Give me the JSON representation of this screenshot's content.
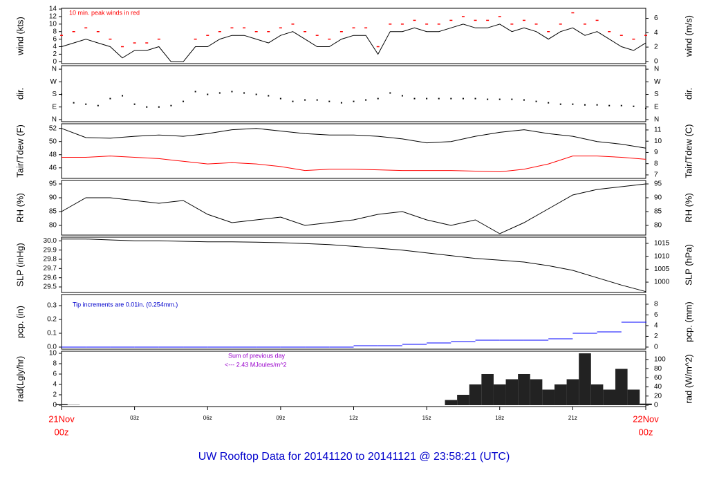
{
  "title": "UW Rooftop Data for 20141120  to  20141121 @ 23:58:21  (UTC)",
  "xaxis": {
    "xlim": [
      0,
      24
    ],
    "date_color": "#ff0000",
    "xticks": [
      {
        "value": 0,
        "label": "00z",
        "date": "21Nov"
      },
      {
        "value": 3,
        "label": "03z"
      },
      {
        "value": 6,
        "label": "06z"
      },
      {
        "value": 9,
        "label": "09z"
      },
      {
        "value": 12,
        "label": "12z"
      },
      {
        "value": 15,
        "label": "15z"
      },
      {
        "value": 18,
        "label": "18z"
      },
      {
        "value": 21,
        "label": "21z"
      },
      {
        "value": 24,
        "label": "00z",
        "date": "22Nov"
      }
    ]
  },
  "chart_data": [
    {
      "type": "line",
      "ylabel": "wind (kts)",
      "y2label": "wind (m/s)",
      "ylim": [
        -0.5,
        14.2
      ],
      "yticks": [
        0,
        2,
        4,
        6,
        8,
        10,
        12,
        14
      ],
      "y2lim": [
        -0.3,
        7.4
      ],
      "y2ticks": [
        0,
        2,
        4,
        6
      ],
      "annotations": [
        {
          "text": "10 min. peak winds in red",
          "color": "#ff0000"
        }
      ],
      "x": [
        0,
        0.5,
        1,
        1.5,
        2,
        2.5,
        3,
        3.5,
        4,
        4.5,
        5,
        5.5,
        6,
        6.5,
        7,
        7.5,
        8,
        8.5,
        9,
        9.5,
        10,
        10.5,
        11,
        11.5,
        12,
        12.5,
        13,
        13.5,
        14,
        14.5,
        15,
        15.5,
        16,
        16.5,
        17,
        17.5,
        18,
        18.5,
        19,
        19.5,
        20,
        20.5,
        21,
        21.5,
        22,
        22.5,
        23,
        23.5,
        24
      ],
      "series": [
        {
          "style": "line",
          "color": "#000000",
          "values": [
            4,
            5,
            6,
            5,
            4,
            1,
            3,
            3,
            4,
            0,
            0,
            4,
            4,
            6,
            7,
            7,
            6,
            5,
            7,
            8,
            6,
            4,
            4,
            6,
            7,
            7,
            2,
            8,
            8,
            9,
            8,
            8,
            9,
            10,
            9,
            9,
            10,
            8,
            9,
            8,
            6,
            8,
            9,
            7,
            8,
            6,
            4,
            3,
            5
          ]
        },
        {
          "style": "dash",
          "color": "#ff0000",
          "values": [
            7,
            8,
            9,
            8,
            6,
            4,
            5,
            5,
            6,
            null,
            null,
            6,
            7,
            8,
            9,
            9,
            8,
            8,
            9,
            10,
            8,
            7,
            6,
            8,
            9,
            9,
            4,
            10,
            10,
            11,
            10,
            10,
            11,
            12,
            11,
            11,
            12,
            10,
            11,
            10,
            8,
            10,
            13,
            10,
            11,
            8,
            7,
            6,
            7
          ]
        }
      ]
    },
    {
      "type": "line",
      "ylabel": "dir.",
      "y2label": "dir.",
      "ylim": [
        -15,
        385
      ],
      "yticks": [
        {
          "value": 0,
          "label": "N"
        },
        {
          "value": 90,
          "label": "E"
        },
        {
          "value": 180,
          "label": "S"
        },
        {
          "value": 270,
          "label": "W"
        },
        {
          "value": 360,
          "label": "N"
        }
      ],
      "x": [
        0,
        0.5,
        1,
        1.5,
        2,
        2.5,
        3,
        3.5,
        4,
        4.5,
        5,
        5.5,
        6,
        6.5,
        7,
        7.5,
        8,
        8.5,
        9,
        9.5,
        10,
        10.5,
        11,
        11.5,
        12,
        12.5,
        13,
        13.5,
        14,
        14.5,
        15,
        15.5,
        16,
        16.5,
        17,
        17.5,
        18,
        18.5,
        19,
        19.5,
        20,
        20.5,
        21,
        21.5,
        22,
        22.5,
        23,
        23.5,
        24
      ],
      "series": [
        {
          "style": "dots",
          "color": "#000000",
          "values": [
            180,
            120,
            110,
            100,
            150,
            170,
            110,
            90,
            90,
            100,
            130,
            200,
            180,
            190,
            200,
            190,
            180,
            170,
            150,
            130,
            140,
            140,
            130,
            120,
            130,
            140,
            150,
            190,
            170,
            150,
            150,
            150,
            150,
            150,
            150,
            145,
            145,
            145,
            140,
            130,
            120,
            110,
            110,
            105,
            105,
            100,
            100,
            95,
            80
          ]
        }
      ]
    },
    {
      "type": "line",
      "ylabel": "Tair/Tdew (F)",
      "y2label": "Tair/Tdew (C)",
      "ylim": [
        44.4,
        52.7
      ],
      "yticks": [
        46,
        48,
        50,
        52
      ],
      "y2lim": [
        6.69,
        11.55
      ],
      "y2ticks": [
        7,
        8,
        9,
        10,
        11
      ],
      "x": [
        0,
        1,
        2,
        3,
        4,
        5,
        6,
        7,
        8,
        9,
        10,
        11,
        12,
        13,
        14,
        15,
        16,
        17,
        18,
        19,
        20,
        21,
        22,
        23,
        24
      ],
      "series": [
        {
          "style": "line",
          "color": "#000000",
          "values": [
            52,
            50.6,
            50.5,
            50.8,
            51,
            50.8,
            51.2,
            51.8,
            52,
            51.6,
            51.2,
            51,
            51,
            50.8,
            50.4,
            49.8,
            50,
            50.8,
            51.4,
            51.8,
            51.2,
            50.8,
            50,
            49.6,
            49
          ]
        },
        {
          "style": "line",
          "color": "#ff0000",
          "values": [
            47.6,
            47.6,
            47.8,
            47.6,
            47.4,
            47,
            46.6,
            46.8,
            46.6,
            46.2,
            45.6,
            45.8,
            45.8,
            45.7,
            45.6,
            45.6,
            45.6,
            45.5,
            45.4,
            45.8,
            46.6,
            47.8,
            47.8,
            47.6,
            47.3
          ]
        }
      ]
    },
    {
      "type": "line",
      "ylabel": "RH (%)",
      "y2label": "RH (%)",
      "ylim": [
        76.5,
        96.25
      ],
      "yticks": [
        80,
        85,
        90,
        95
      ],
      "x": [
        0,
        1,
        2,
        3,
        4,
        5,
        6,
        7,
        8,
        9,
        10,
        11,
        12,
        13,
        14,
        15,
        16,
        17,
        18,
        19,
        20,
        21,
        22,
        23,
        24
      ],
      "series": [
        {
          "style": "line",
          "color": "#000000",
          "values": [
            85,
            90,
            90,
            89,
            88,
            89,
            84,
            81,
            82,
            83,
            80,
            81,
            82,
            84,
            85,
            82,
            80,
            82,
            77,
            81,
            86,
            91,
            93,
            94,
            95
          ]
        }
      ]
    },
    {
      "type": "line",
      "ylabel": "SLP (inHg)",
      "y2label": "SLP (hPa)",
      "ylim": [
        29.44,
        30.04
      ],
      "yticks": [
        29.5,
        29.6,
        29.7,
        29.8,
        29.9,
        {
          "value": 30,
          "label": "30.0"
        }
      ],
      "y2lim": [
        996,
        1017.4
      ],
      "y2ticks": [
        1000,
        1005,
        1010,
        1015
      ],
      "x": [
        0,
        1,
        2,
        3,
        4,
        5,
        6,
        7,
        8,
        9,
        10,
        11,
        12,
        13,
        14,
        15,
        16,
        17,
        18,
        19,
        20,
        21,
        22,
        23,
        24
      ],
      "series": [
        {
          "style": "line",
          "color": "#000000",
          "values": [
            30.02,
            30.02,
            30.01,
            30.0,
            30.0,
            29.995,
            29.99,
            29.99,
            29.985,
            29.98,
            29.97,
            29.96,
            29.94,
            29.92,
            29.9,
            29.87,
            29.84,
            29.81,
            29.79,
            29.77,
            29.73,
            29.68,
            29.6,
            29.52,
            29.45
          ]
        }
      ]
    },
    {
      "type": "line",
      "ylabel": "pcp. (in)",
      "y2label": "pcp. (mm)",
      "ylim": [
        -0.015,
        0.38
      ],
      "yticks": [
        {
          "value": 0,
          "label": "0.0"
        },
        0.1,
        0.2,
        0.3
      ],
      "y2lim": [
        -0.39,
        9.8
      ],
      "y2ticks": [
        0,
        2,
        4,
        6,
        8
      ],
      "annotations": [
        {
          "text": "Tip increments are 0.01in. (0.254mm.)",
          "color": "#0000cc"
        }
      ],
      "x": [
        0,
        1,
        2,
        3,
        4,
        5,
        6,
        7,
        8,
        9,
        10,
        11,
        12,
        13,
        14,
        15,
        16,
        17,
        18,
        19,
        20,
        21,
        22,
        23,
        24
      ],
      "series": [
        {
          "style": "step",
          "color": "#0000ff",
          "values": [
            0,
            0,
            0,
            0,
            0,
            0,
            0,
            0,
            0,
            0,
            0,
            0,
            0.01,
            0.01,
            0.02,
            0.03,
            0.04,
            0.05,
            0.05,
            0.05,
            0.06,
            0.1,
            0.11,
            0.18,
            0.18
          ]
        }
      ]
    },
    {
      "type": "line",
      "ylabel": "rad(Lgly/hr)",
      "y2label": "rad (W/m^2)",
      "ylim": [
        -0.27,
        10.4
      ],
      "yticks": [
        0,
        2,
        4,
        6,
        8,
        10
      ],
      "y2lim": [
        -3,
        118
      ],
      "y2ticks": [
        0,
        20,
        40,
        60,
        80,
        100
      ],
      "annotations": [
        {
          "text": "Sum of previous day",
          "color": "#9900cc"
        },
        {
          "text": "<--- 2.43 MJoules/m^2",
          "color": "#9900cc"
        }
      ],
      "x": [
        0,
        0.5,
        1,
        1.5,
        2,
        2.5,
        3,
        3.5,
        4,
        4.5,
        5,
        5.5,
        6,
        6.5,
        7,
        7.5,
        8,
        8.5,
        9,
        9.5,
        10,
        10.5,
        11,
        11.5,
        12,
        12.5,
        13,
        13.5,
        14,
        14.5,
        15,
        15.5,
        16,
        16.5,
        17,
        17.5,
        18,
        18.5,
        19,
        19.5,
        20,
        20.5,
        21,
        21.5,
        22,
        22.5,
        23,
        23.5,
        24
      ],
      "series": [
        {
          "style": "bars",
          "color": "#222222",
          "values": [
            0.2,
            0.05,
            0,
            0,
            0,
            0,
            0,
            0,
            0,
            0,
            0,
            0,
            0,
            0,
            0,
            0,
            0,
            0,
            0,
            0,
            0,
            0,
            0,
            0,
            0,
            0,
            0,
            0,
            0,
            0,
            0,
            0,
            1,
            2,
            4,
            6,
            4,
            5,
            6,
            5,
            3,
            4,
            5,
            10,
            4,
            3,
            7,
            3,
            0.3
          ]
        }
      ]
    }
  ]
}
